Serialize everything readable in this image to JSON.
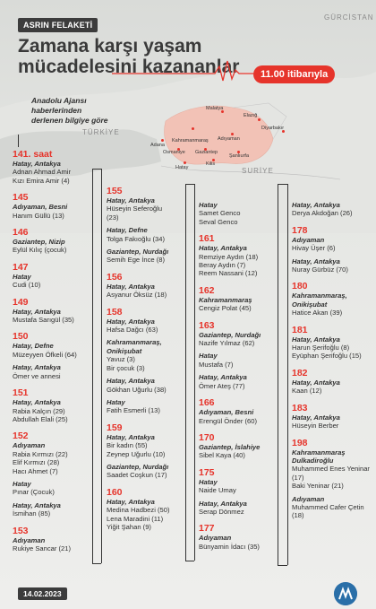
{
  "badge": "ASRIN FELAKETİ",
  "title": "Zamana karşı yaşam mücadelesini kazananlar",
  "time": "11.00 itibarıyla",
  "note": "Anadolu Ajansı haberlerinden derlenen bilgiye göre",
  "map": {
    "countries": {
      "turkey": "TÜRKİYE",
      "syria": "SURİYE",
      "georgia": "GÜRCİSTAN"
    },
    "cities": [
      "Gaziantep",
      "Kahramanmaraş",
      "Malatya",
      "Elazığ",
      "Adıyaman",
      "Osmaniye",
      "Hatay",
      "Kilis",
      "Şanlıurfa",
      "Diyarbakır",
      "Adana"
    ]
  },
  "columns": [
    [
      {
        "hour": "141. saat",
        "entries": [
          {
            "loc": "Hatay, Antakya",
            "names": [
              "Adnan Ahmad Amir",
              "Kızı Emira Amir (4)"
            ]
          }
        ]
      },
      {
        "hour": "145",
        "entries": [
          {
            "loc": "Adıyaman, Besni",
            "names": [
              "Hanım Güllü (13)"
            ]
          }
        ]
      },
      {
        "hour": "146",
        "entries": [
          {
            "loc": "Gaziantep, Nizip",
            "names": [
              "Eylül Kılıç (çocuk)"
            ]
          }
        ]
      },
      {
        "hour": "147",
        "entries": [
          {
            "loc": "Hatay",
            "names": [
              "Cudi (10)"
            ]
          }
        ]
      },
      {
        "hour": "149",
        "entries": [
          {
            "loc": "Hatay, Antakya",
            "names": [
              "Mustafa Sarıgül (35)"
            ]
          }
        ]
      },
      {
        "hour": "150",
        "entries": [
          {
            "loc": "Hatay, Defne",
            "names": [
              "Müzeyyen Öfkeli (64)"
            ]
          },
          {
            "loc": "Hatay, Antakya",
            "names": [
              "Ömer ve annesi"
            ]
          }
        ]
      },
      {
        "hour": "151",
        "entries": [
          {
            "loc": "Hatay, Antakya",
            "names": [
              "Rabia Kalçın (29)",
              "Abdullah Elali (25)"
            ]
          }
        ]
      },
      {
        "hour": "152",
        "entries": [
          {
            "loc": "Adıyaman",
            "names": [
              "Rabia Kırmızı (22)",
              "Elif Kırmızı (28)",
              "Hacı Ahmet (7)"
            ]
          },
          {
            "loc": "Hatay",
            "names": [
              "Pınar (Çocuk)"
            ]
          },
          {
            "loc": "Hatay, Antakya",
            "names": [
              "İsmihan (85)"
            ]
          }
        ]
      },
      {
        "hour": "153",
        "entries": [
          {
            "loc": "Adıyaman",
            "names": [
              "Rukiye Sancar (21)"
            ]
          }
        ]
      }
    ],
    [
      {
        "hour": "155",
        "entries": [
          {
            "loc": "Hatay, Antakya",
            "names": [
              "Hüseyin Seferoğlu",
              "(23)"
            ]
          },
          {
            "loc": "Hatay, Defne",
            "names": [
              "Tolga Fakıoğlu (34)"
            ]
          },
          {
            "loc": "Gaziantep, Nurdağı",
            "names": [
              "Semih Ege İnce (8)"
            ]
          }
        ]
      },
      {
        "hour": "156",
        "entries": [
          {
            "loc": "Hatay, Antakya",
            "names": [
              "Asyanur Öksüz (18)"
            ]
          }
        ]
      },
      {
        "hour": "158",
        "entries": [
          {
            "loc": "Hatay, Antakya",
            "names": [
              "Hafsa Dağcı (63)"
            ]
          },
          {
            "loc": "Kahramanmaraş, Onikişubat",
            "names": [
              "Yavuz (3)",
              "Bir çocuk (3)"
            ]
          },
          {
            "loc": "Hatay, Antakya",
            "names": [
              "Gökhan Uğurlu (38)"
            ]
          },
          {
            "loc": "Hatay",
            "names": [
              "Fatih Esmerli (13)"
            ]
          }
        ]
      },
      {
        "hour": "159",
        "entries": [
          {
            "loc": "Hatay, Antakya",
            "names": [
              "Bir kadın (55)",
              "Zeynep Uğurlu (10)"
            ]
          },
          {
            "loc": "Gaziantep, Nurdağı",
            "names": [
              "Saadet Coşkun (17)"
            ]
          }
        ]
      },
      {
        "hour": "160",
        "entries": [
          {
            "loc": "Hatay, Antakya",
            "names": [
              "Medina Hadbezi (50)",
              "Lena Maradini (11)",
              "Yiğit Şahan (9)"
            ]
          }
        ]
      }
    ],
    [
      {
        "hour": "",
        "entries": [
          {
            "loc": "Hatay",
            "names": [
              "Samet Genco",
              "Seval Genco"
            ]
          }
        ]
      },
      {
        "hour": "161",
        "entries": [
          {
            "loc": "Hatay, Antakya",
            "names": [
              "Remziye Aydın (18)",
              "Beray Aydın (7)",
              "Reem Nassani (12)"
            ]
          }
        ]
      },
      {
        "hour": "162",
        "entries": [
          {
            "loc": "Kahramanmaraş",
            "names": [
              "Cengiz Polat (45)"
            ]
          }
        ]
      },
      {
        "hour": "163",
        "entries": [
          {
            "loc": "Gaziantep, Nurdağı",
            "names": [
              "Nazife Yılmaz (62)"
            ]
          },
          {
            "loc": "Hatay",
            "names": [
              "Mustafa (7)"
            ]
          },
          {
            "loc": "Hatay, Antakya",
            "names": [
              "Ömer Ateş (77)"
            ]
          }
        ]
      },
      {
        "hour": "166",
        "entries": [
          {
            "loc": "Adıyaman, Besni",
            "names": [
              "Erengül Önder (60)"
            ]
          }
        ]
      },
      {
        "hour": "170",
        "entries": [
          {
            "loc": "Gaziantep, İslahiye",
            "names": [
              "Sibel Kaya (40)"
            ]
          }
        ]
      },
      {
        "hour": "175",
        "entries": [
          {
            "loc": "Hatay",
            "names": [
              "Naide Umay"
            ]
          },
          {
            "loc": "Hatay, Antakya",
            "names": [
              "Serap Dönmez"
            ]
          }
        ]
      },
      {
        "hour": "177",
        "entries": [
          {
            "loc": "Adıyaman",
            "names": [
              "Bünyamin İdacı (35)"
            ]
          }
        ]
      }
    ],
    [
      {
        "hour": "",
        "entries": [
          {
            "loc": "Hatay, Antakya",
            "names": [
              "Derya Akdoğan (26)"
            ]
          }
        ]
      },
      {
        "hour": "178",
        "entries": [
          {
            "loc": "Adıyaman",
            "names": [
              "Hivay Üşer (6)"
            ]
          },
          {
            "loc": "Hatay, Antakya",
            "names": [
              "Nuray Gürbüz (70)"
            ]
          }
        ]
      },
      {
        "hour": "180",
        "entries": [
          {
            "loc": "Kahramanmaraş, Onikişubat",
            "names": [
              "Hatice Akan (39)"
            ]
          }
        ]
      },
      {
        "hour": "181",
        "entries": [
          {
            "loc": "Hatay, Antakya",
            "names": [
              "Harun Şerifoğlu (8)",
              "Eyüphan Şerifoğlu (15)"
            ]
          }
        ]
      },
      {
        "hour": "182",
        "entries": [
          {
            "loc": "Hatay, Antakya",
            "names": [
              "Kaan (12)"
            ]
          }
        ]
      },
      {
        "hour": "183",
        "entries": [
          {
            "loc": "Hatay, Antakya",
            "names": [
              "Hüseyin Berber"
            ]
          }
        ]
      },
      {
        "hour": "198",
        "entries": [
          {
            "loc": "Kahramanmaraş Dulkadiroğlu",
            "names": [
              "Muhammed Enes Yeninar (17)",
              "Baki Yeninar (21)"
            ]
          },
          {
            "loc": "Adıyaman",
            "names": [
              "Muhammed Cafer Çetin (18)"
            ]
          }
        ]
      }
    ]
  ],
  "footer_date": "14.02.2023",
  "logo_text": "AA",
  "colors": {
    "accent": "#e6342b",
    "dark": "#3c3c3c"
  }
}
